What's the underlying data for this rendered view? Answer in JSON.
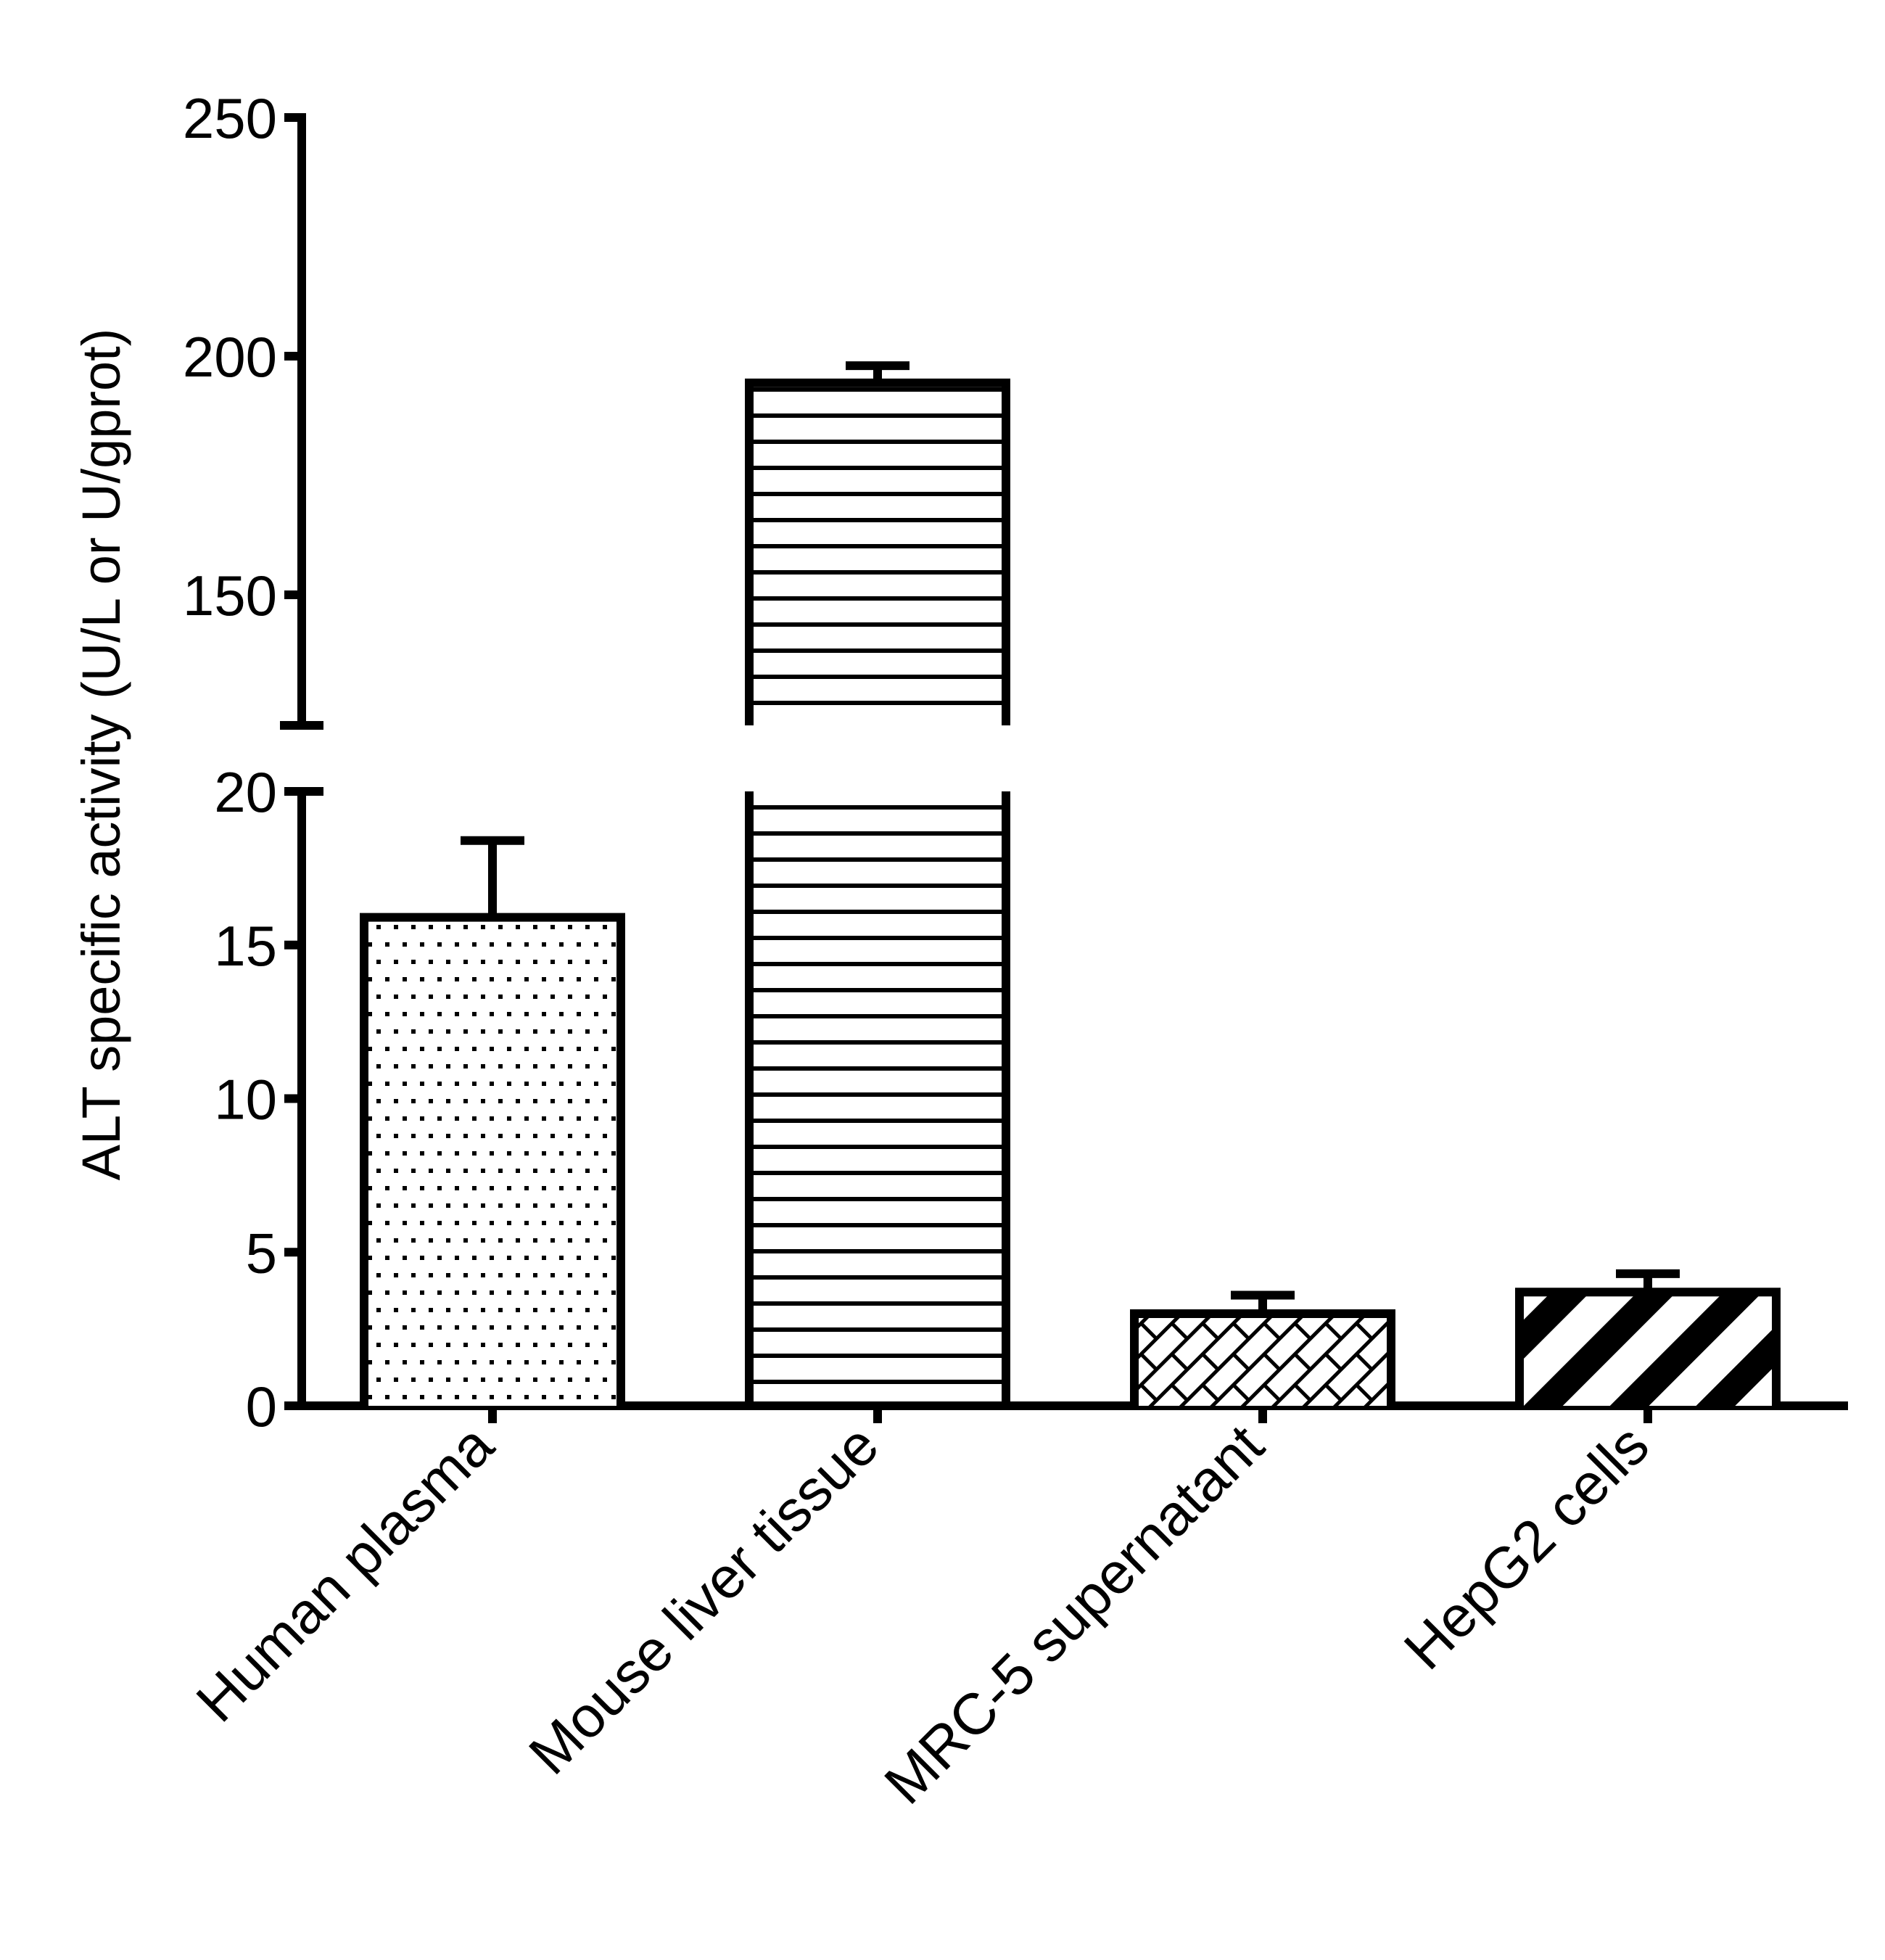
{
  "chart_data": {
    "type": "bar",
    "title": "",
    "xlabel": "",
    "ylabel": "ALT specific activity (U/L or U/gprot)",
    "categories": [
      "Human plasma",
      "Mouse liver tissue",
      "MRC-5 supernatant",
      "HepG2 cells"
    ],
    "values": [
      15.9,
      194.4,
      3.0,
      3.7
    ],
    "error_upper": [
      18.4,
      198.0,
      3.6,
      4.3
    ],
    "patterns": [
      "dots",
      "horizontal-lines",
      "brick-diagonal",
      "diagonal-stripes"
    ],
    "y_axis_broken": true,
    "y_segments": [
      {
        "range": [
          0,
          20
        ],
        "ticks": [
          0,
          5,
          10,
          15,
          20
        ]
      },
      {
        "range": [
          126,
          250
        ],
        "ticks": [
          150,
          200,
          250
        ]
      }
    ],
    "ylim": [
      0,
      250
    ],
    "grid": false,
    "legend": null
  },
  "colors": {
    "ink": "#000000",
    "background": "#ffffff"
  }
}
